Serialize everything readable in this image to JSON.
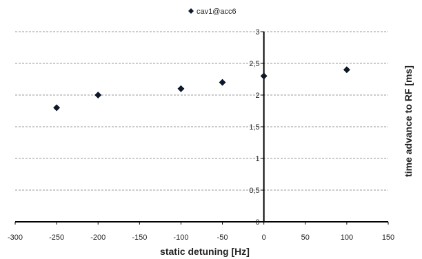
{
  "chart_data": {
    "type": "scatter",
    "title": "",
    "xlabel": "static detuning [Hz]",
    "ylabel": "time advance to RF [ms]",
    "xlim": [
      -300,
      150
    ],
    "ylim": [
      0,
      3
    ],
    "x_ticks": [
      -300,
      -250,
      -200,
      -150,
      -100,
      -50,
      0,
      50,
      100,
      150
    ],
    "y_ticks": [
      0,
      0.5,
      1,
      1.5,
      2,
      2.5,
      3
    ],
    "x_tick_labels": [
      "-300",
      "-250",
      "-200",
      "-150",
      "-100",
      "-50",
      "0",
      "50",
      "100",
      "150"
    ],
    "y_tick_labels": [
      "0",
      "0,5",
      "1",
      "1,5",
      "2",
      "2,5",
      "3"
    ],
    "grid": "horizontal dashed",
    "legend_position": "top-center",
    "series": [
      {
        "name": "cav1@acc6",
        "marker": "diamond",
        "color": "#0a1a33",
        "x": [
          -250,
          -200,
          -100,
          -50,
          0,
          100
        ],
        "y": [
          1.8,
          2.0,
          2.1,
          2.2,
          2.3,
          2.4
        ]
      }
    ]
  }
}
